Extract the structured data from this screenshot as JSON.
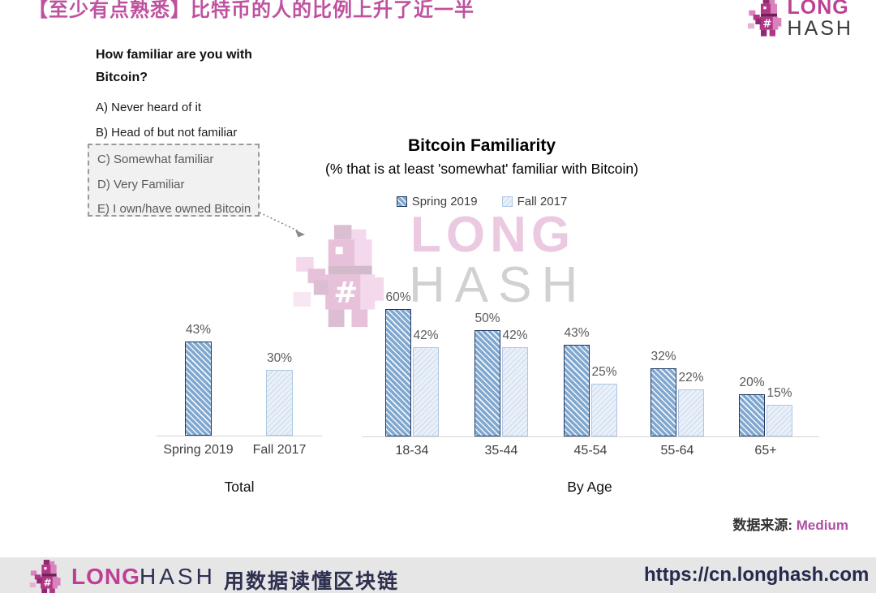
{
  "page": {
    "title": "【至少有点熟悉】比特币的人的比例上升了近一半"
  },
  "brand": {
    "line1": "LONG",
    "line2": "HASH",
    "hash_symbol": "#"
  },
  "survey": {
    "question": "How familiar are you with Bitcoin?",
    "options": [
      {
        "label": "A) Never heard of it",
        "highlighted": false
      },
      {
        "label": "B) Head of but not familiar",
        "highlighted": false
      },
      {
        "label": "C) Somewhat familiar",
        "highlighted": true
      },
      {
        "label": "D) Very Familiar",
        "highlighted": true
      },
      {
        "label": "E) I own/have owned Bitcoin",
        "highlighted": true
      }
    ]
  },
  "chart_data": {
    "type": "bar",
    "title": "Bitcoin Familiarity",
    "subtitle": "(% that is at least 'somewhat' familiar with Bitcoin)",
    "unit": "%",
    "legend": [
      "Spring 2019",
      "Fall 2017"
    ],
    "legend_position": "top",
    "grid": false,
    "ylim": [
      0,
      65
    ],
    "colors": {
      "spring_fill": "#7FA7CF",
      "spring_border": "#1F3864",
      "fall_fill": "#EAF0F8",
      "fall_border": "#AFC7E4"
    },
    "panels": [
      {
        "caption": "Total",
        "categories": [
          "Spring 2019",
          "Fall 2017"
        ],
        "values": [
          43,
          30
        ],
        "styles": [
          "spring",
          "fall"
        ]
      },
      {
        "caption": "By Age",
        "categories": [
          "18-34",
          "35-44",
          "45-54",
          "55-64",
          "65+"
        ],
        "series": [
          {
            "name": "Spring 2019",
            "style": "spring",
            "values": [
              60,
              50,
              43,
              32,
              20
            ]
          },
          {
            "name": "Fall 2017",
            "style": "fall",
            "values": [
              42,
              42,
              25,
              22,
              15
            ]
          }
        ]
      }
    ]
  },
  "watermark": {
    "line1": "LONG",
    "line2": "HASH"
  },
  "source": {
    "label": "数据来源:",
    "link": "Medium"
  },
  "footer": {
    "brand1": "LONG",
    "brand2": "HASH",
    "tagline": "用数据读懂区块链",
    "url": "https://cn.longhash.com"
  }
}
